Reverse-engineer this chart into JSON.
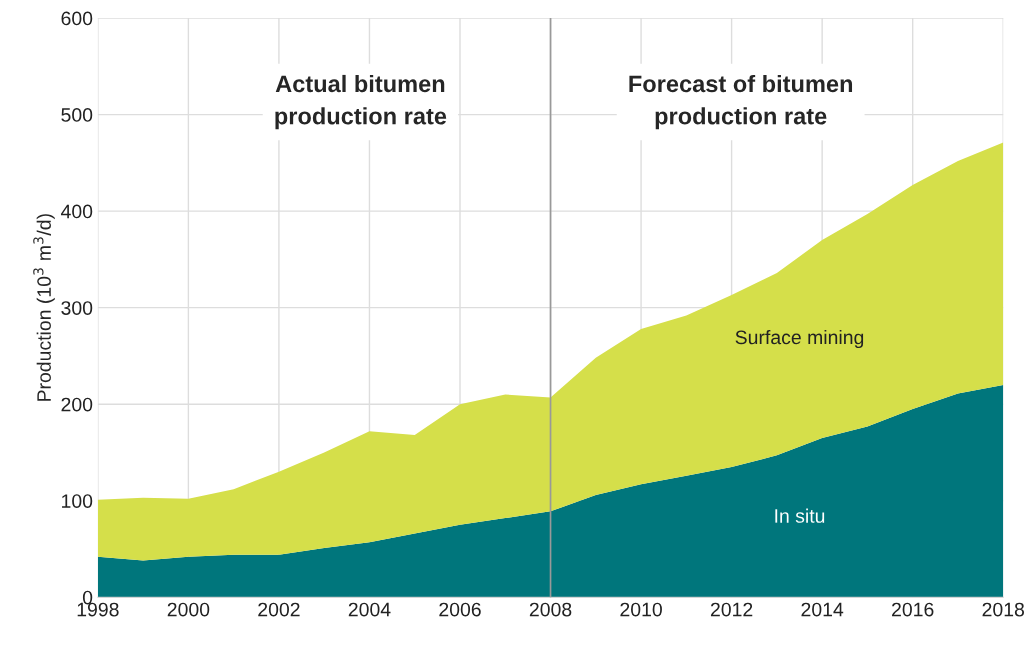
{
  "chart_data": {
    "type": "area",
    "stacked": true,
    "ylabel": "Production (10$^{3}$ m$^{3}$/d)",
    "x": [
      1998,
      1999,
      2000,
      2001,
      2002,
      2003,
      2004,
      2005,
      2006,
      2007,
      2008,
      2009,
      2010,
      2011,
      2012,
      2013,
      2014,
      2015,
      2016,
      2017,
      2018
    ],
    "series": [
      {
        "name": "In situ",
        "color": "#00767c",
        "values": [
          42,
          38,
          42,
          44,
          44,
          51,
          57,
          66,
          75,
          82,
          89,
          106,
          117,
          126,
          135,
          147,
          165,
          177,
          195,
          211,
          220
        ]
      },
      {
        "name": "Surface mining",
        "color": "#d5df4a",
        "values": [
          59,
          65,
          60,
          68,
          86,
          99,
          115,
          102,
          125,
          128,
          118,
          142,
          161,
          166,
          178,
          189,
          205,
          220,
          232,
          241,
          251
        ]
      }
    ],
    "xlim": [
      1998,
      2018
    ],
    "xticks": [
      1998,
      2000,
      2002,
      2004,
      2006,
      2008,
      2010,
      2012,
      2014,
      2016,
      2018
    ],
    "ylim": [
      0,
      600
    ],
    "yticks": [
      0,
      100,
      200,
      300,
      400,
      500,
      600
    ],
    "grid": true,
    "legend": false,
    "ref_lines": [
      {
        "axis": "x",
        "value": 2008,
        "color": "#999999"
      }
    ],
    "annotations": [
      "Actual bitumen\nproduction rate",
      "Forecast of bitumen\nproduction rate"
    ]
  }
}
